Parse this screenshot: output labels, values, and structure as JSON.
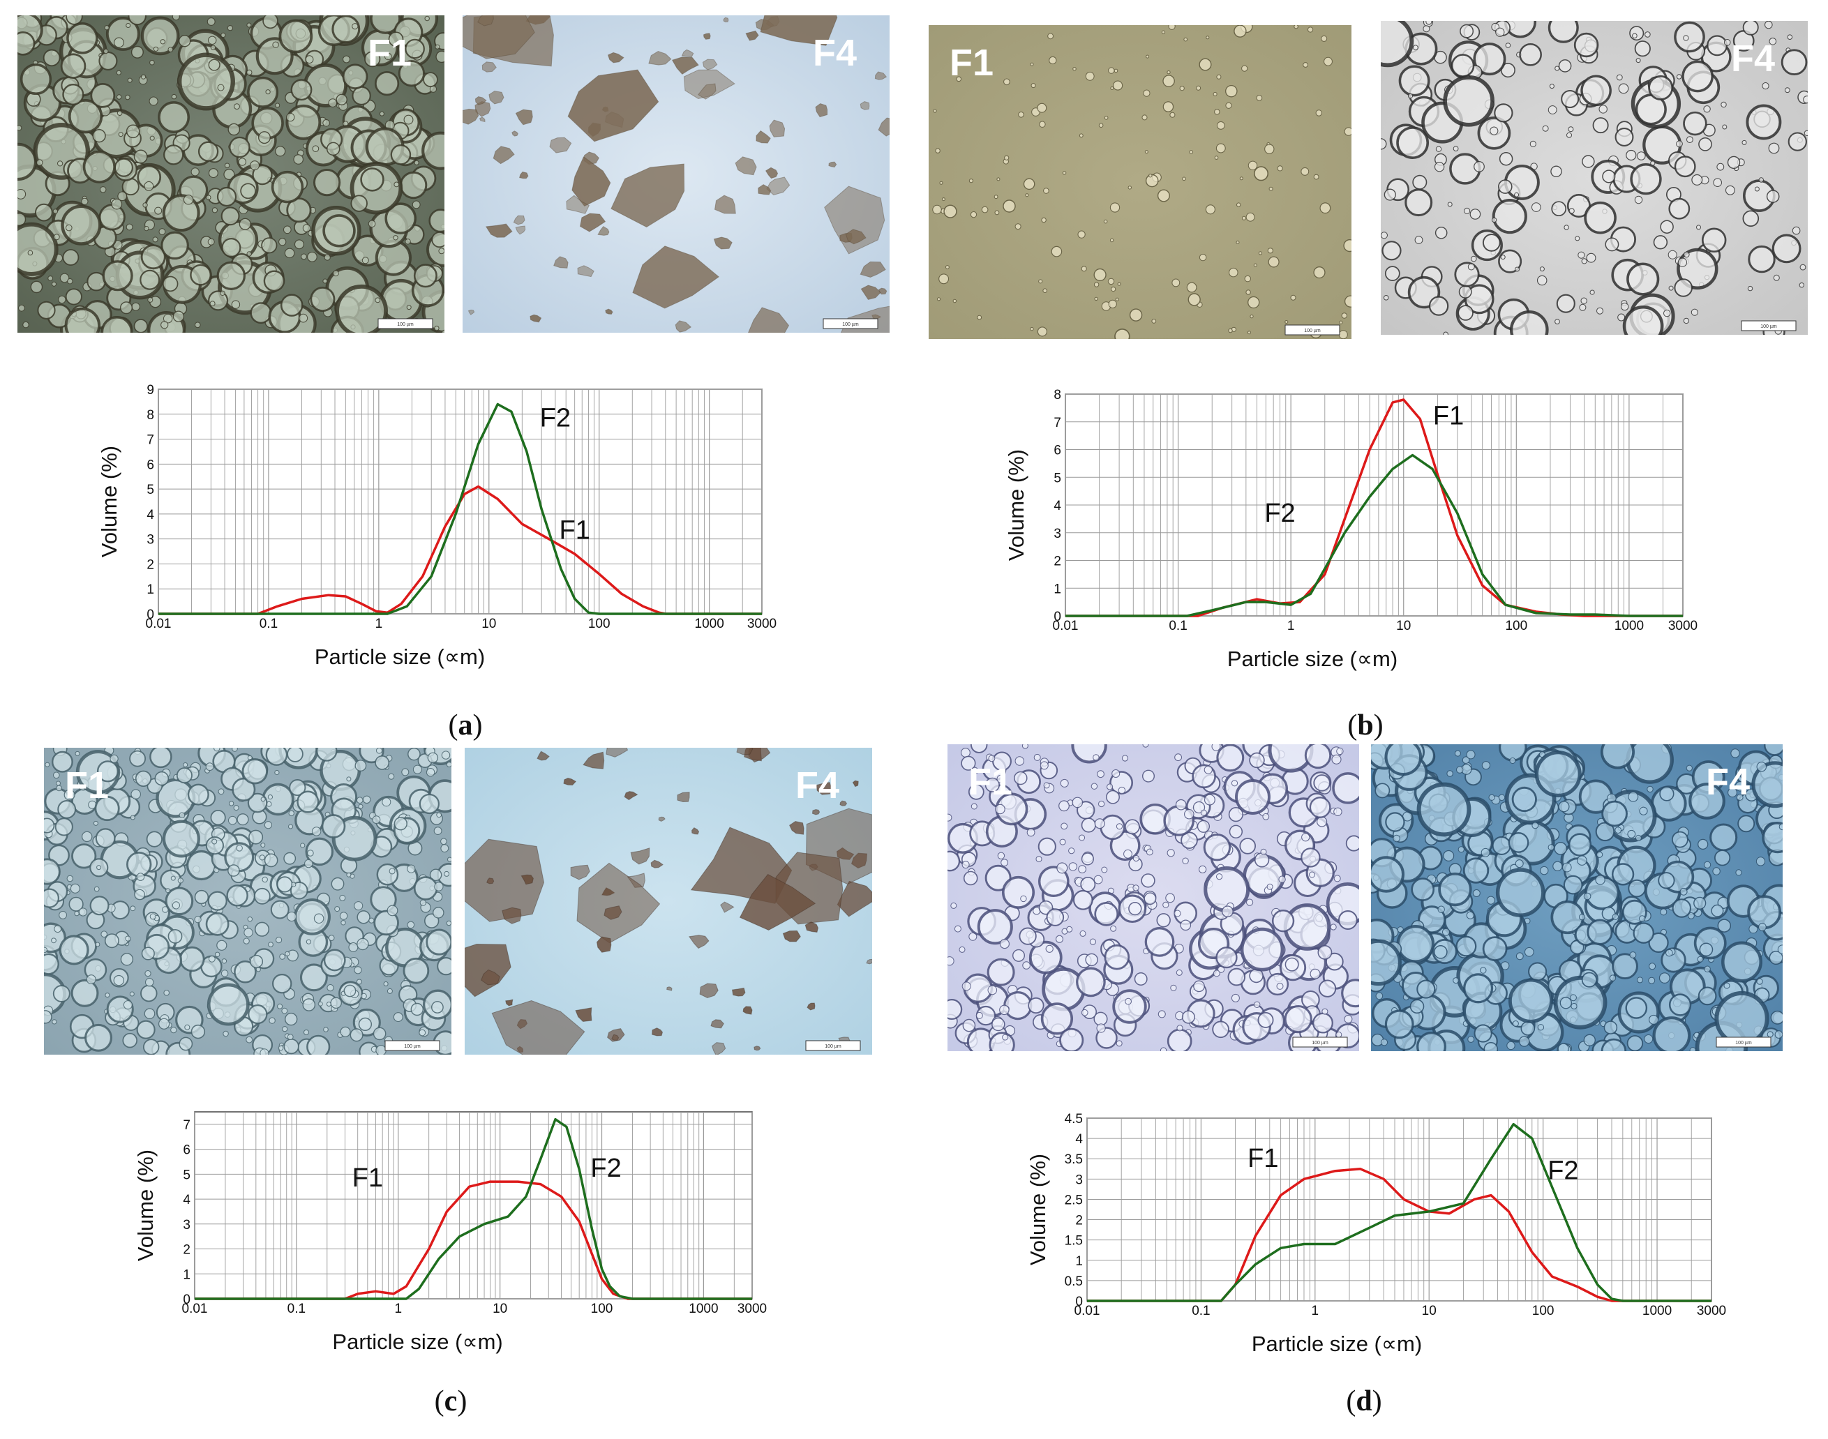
{
  "colors": {
    "F1": "#dd1a1a",
    "F2": "#1e6e1e",
    "grid": "#9a9a9a"
  },
  "panels": [
    {
      "id": "a",
      "caption_letter": "a",
      "photos": [
        {
          "label": "F1",
          "scale_text": "100 µm",
          "tone": "olive-teal-emulsion"
        },
        {
          "label": "F4",
          "scale_text": "100 µm",
          "tone": "pale-blue-aggregates"
        }
      ],
      "chart_data": {
        "type": "line",
        "xscale": "log",
        "xlim": [
          0.01,
          3000
        ],
        "ylim": [
          0,
          9
        ],
        "x_ticks": [
          "0.01",
          "0.1",
          "1",
          "10",
          "100",
          "1000",
          "3000"
        ],
        "y_ticks": [
          "0",
          "1",
          "2",
          "3",
          "4",
          "5",
          "6",
          "7",
          "8",
          "9"
        ],
        "xlabel": "Particle size (∝m)",
        "ylabel": "Volume (%)",
        "grid": true,
        "series": [
          {
            "name": "F1",
            "label_at": [
              60,
              3.0
            ],
            "points": [
              [
                0.01,
                0
              ],
              [
                0.08,
                0
              ],
              [
                0.12,
                0.3
              ],
              [
                0.2,
                0.6
              ],
              [
                0.35,
                0.75
              ],
              [
                0.5,
                0.7
              ],
              [
                0.7,
                0.4
              ],
              [
                0.95,
                0.1
              ],
              [
                1.2,
                0.05
              ],
              [
                1.6,
                0.4
              ],
              [
                2.5,
                1.5
              ],
              [
                4,
                3.5
              ],
              [
                6,
                4.8
              ],
              [
                8,
                5.1
              ],
              [
                12,
                4.6
              ],
              [
                20,
                3.6
              ],
              [
                35,
                3.0
              ],
              [
                60,
                2.4
              ],
              [
                100,
                1.6
              ],
              [
                160,
                0.8
              ],
              [
                250,
                0.3
              ],
              [
                350,
                0.05
              ],
              [
                400,
                0
              ],
              [
                3000,
                0
              ]
            ]
          },
          {
            "name": "F2",
            "label_at": [
              40,
              7.5
            ],
            "points": [
              [
                0.01,
                0
              ],
              [
                1.2,
                0
              ],
              [
                1.8,
                0.3
              ],
              [
                3,
                1.5
              ],
              [
                5,
                4
              ],
              [
                8,
                6.8
              ],
              [
                12,
                8.4
              ],
              [
                16,
                8.1
              ],
              [
                22,
                6.5
              ],
              [
                30,
                4.2
              ],
              [
                45,
                1.8
              ],
              [
                60,
                0.6
              ],
              [
                80,
                0.05
              ],
              [
                100,
                0
              ],
              [
                3000,
                0
              ]
            ]
          }
        ]
      }
    },
    {
      "id": "b",
      "caption_letter": "b",
      "photos": [
        {
          "label": "F1",
          "scale_text": "100 µm",
          "tone": "khaki-sparse"
        },
        {
          "label": "F4",
          "scale_text": "100 µm",
          "tone": "grey-droplets"
        }
      ],
      "chart_data": {
        "type": "line",
        "xscale": "log",
        "xlim": [
          0.01,
          3000
        ],
        "ylim": [
          0,
          8
        ],
        "x_ticks": [
          "0.01",
          "0.1",
          "1",
          "10",
          "100",
          "1000",
          "3000"
        ],
        "y_ticks": [
          "0",
          "1",
          "2",
          "3",
          "4",
          "5",
          "6",
          "7",
          "8"
        ],
        "xlabel": "Particle size (∝m)",
        "ylabel": "Volume (%)",
        "grid": true,
        "series": [
          {
            "name": "F1",
            "label_at": [
              25,
              6.9
            ],
            "points": [
              [
                0.01,
                0
              ],
              [
                0.15,
                0
              ],
              [
                0.25,
                0.3
              ],
              [
                0.5,
                0.6
              ],
              [
                0.8,
                0.45
              ],
              [
                1.2,
                0.5
              ],
              [
                2,
                1.5
              ],
              [
                3,
                3.5
              ],
              [
                5,
                6
              ],
              [
                8,
                7.7
              ],
              [
                10,
                7.8
              ],
              [
                14,
                7.1
              ],
              [
                20,
                5.1
              ],
              [
                30,
                2.9
              ],
              [
                50,
                1.1
              ],
              [
                80,
                0.4
              ],
              [
                150,
                0.15
              ],
              [
                250,
                0.05
              ],
              [
                400,
                0
              ],
              [
                3000,
                0
              ]
            ]
          },
          {
            "name": "F2",
            "label_at": [
              0.8,
              3.4
            ],
            "points": [
              [
                0.01,
                0
              ],
              [
                0.12,
                0
              ],
              [
                0.2,
                0.2
              ],
              [
                0.4,
                0.5
              ],
              [
                0.6,
                0.5
              ],
              [
                1,
                0.4
              ],
              [
                1.5,
                0.8
              ],
              [
                2,
                1.7
              ],
              [
                3,
                3.0
              ],
              [
                5,
                4.3
              ],
              [
                8,
                5.3
              ],
              [
                12,
                5.8
              ],
              [
                18,
                5.3
              ],
              [
                30,
                3.7
              ],
              [
                50,
                1.5
              ],
              [
                80,
                0.4
              ],
              [
                150,
                0.1
              ],
              [
                300,
                0.05
              ],
              [
                500,
                0.05
              ],
              [
                1000,
                0
              ],
              [
                3000,
                0
              ]
            ]
          }
        ]
      }
    },
    {
      "id": "c",
      "caption_letter": "c",
      "photos": [
        {
          "label": "F1",
          "scale_text": "100 µm",
          "tone": "blue-grey-emulsion"
        },
        {
          "label": "F4",
          "scale_text": "100 µm",
          "tone": "light-blue-aggregates"
        }
      ],
      "chart_data": {
        "type": "line",
        "xscale": "log",
        "xlim": [
          0.01,
          3000
        ],
        "ylim": [
          0,
          7.5
        ],
        "x_ticks": [
          "0.01",
          "0.1",
          "1",
          "10",
          "100",
          "1000",
          "3000"
        ],
        "y_ticks": [
          "0",
          "1",
          "2",
          "3",
          "4",
          "5",
          "6",
          "7"
        ],
        "xlabel": "Particle size (∝m)",
        "ylabel": "Volume (%)",
        "grid": true,
        "series": [
          {
            "name": "F1",
            "label_at": [
              0.5,
              4.5
            ],
            "points": [
              [
                0.01,
                0
              ],
              [
                0.3,
                0
              ],
              [
                0.4,
                0.2
              ],
              [
                0.6,
                0.3
              ],
              [
                0.9,
                0.2
              ],
              [
                1.2,
                0.5
              ],
              [
                2,
                2
              ],
              [
                3,
                3.5
              ],
              [
                5,
                4.5
              ],
              [
                8,
                4.7
              ],
              [
                15,
                4.7
              ],
              [
                25,
                4.6
              ],
              [
                40,
                4.1
              ],
              [
                60,
                3.1
              ],
              [
                80,
                1.8
              ],
              [
                100,
                0.8
              ],
              [
                130,
                0.2
              ],
              [
                180,
                0
              ],
              [
                3000,
                0
              ]
            ]
          },
          {
            "name": "F2",
            "label_at": [
              110,
              4.9
            ],
            "points": [
              [
                0.01,
                0
              ],
              [
                1.2,
                0
              ],
              [
                1.6,
                0.4
              ],
              [
                2.5,
                1.6
              ],
              [
                4,
                2.5
              ],
              [
                7,
                3
              ],
              [
                12,
                3.3
              ],
              [
                18,
                4.1
              ],
              [
                25,
                5.6
              ],
              [
                35,
                7.2
              ],
              [
                45,
                6.9
              ],
              [
                60,
                5.2
              ],
              [
                80,
                2.8
              ],
              [
                100,
                1.2
              ],
              [
                120,
                0.5
              ],
              [
                150,
                0.1
              ],
              [
                200,
                0
              ],
              [
                3000,
                0
              ]
            ]
          }
        ]
      }
    },
    {
      "id": "d",
      "caption_letter": "d",
      "photos": [
        {
          "label": "F1",
          "scale_text": "100 µm",
          "tone": "lavender-droplets"
        },
        {
          "label": "F4",
          "scale_text": "100 µm",
          "tone": "blue-droplets"
        }
      ],
      "chart_data": {
        "type": "line",
        "xscale": "log",
        "xlim": [
          0.01,
          3000
        ],
        "ylim": [
          0,
          4.5
        ],
        "x_ticks": [
          "0.01",
          "0.1",
          "1",
          "10",
          "100",
          "1000",
          "3000"
        ],
        "y_ticks": [
          "0",
          "0.5",
          "1",
          "1.5",
          "2",
          "2.5",
          "3",
          "3.5",
          "4",
          "4.5"
        ],
        "xlabel": "Particle size (∝m)",
        "ylabel": "Volume (%)",
        "grid": true,
        "series": [
          {
            "name": "F1",
            "label_at": [
              0.35,
              3.3
            ],
            "points": [
              [
                0.01,
                0
              ],
              [
                0.15,
                0
              ],
              [
                0.2,
                0.4
              ],
              [
                0.3,
                1.6
              ],
              [
                0.5,
                2.6
              ],
              [
                0.8,
                3.0
              ],
              [
                1.5,
                3.2
              ],
              [
                2.5,
                3.25
              ],
              [
                4,
                3.0
              ],
              [
                6,
                2.5
              ],
              [
                10,
                2.2
              ],
              [
                15,
                2.15
              ],
              [
                25,
                2.5
              ],
              [
                35,
                2.6
              ],
              [
                50,
                2.2
              ],
              [
                80,
                1.2
              ],
              [
                120,
                0.6
              ],
              [
                200,
                0.35
              ],
              [
                300,
                0.1
              ],
              [
                400,
                0
              ],
              [
                3000,
                0
              ]
            ]
          },
          {
            "name": "F2",
            "label_at": [
              150,
              3.0
            ],
            "points": [
              [
                0.01,
                0
              ],
              [
                0.15,
                0
              ],
              [
                0.2,
                0.4
              ],
              [
                0.3,
                0.9
              ],
              [
                0.5,
                1.3
              ],
              [
                0.8,
                1.4
              ],
              [
                1.5,
                1.4
              ],
              [
                3,
                1.8
              ],
              [
                5,
                2.1
              ],
              [
                10,
                2.2
              ],
              [
                20,
                2.4
              ],
              [
                35,
                3.5
              ],
              [
                55,
                4.35
              ],
              [
                80,
                4.0
              ],
              [
                120,
                2.8
              ],
              [
                200,
                1.3
              ],
              [
                300,
                0.4
              ],
              [
                400,
                0.05
              ],
              [
                500,
                0
              ],
              [
                3000,
                0
              ]
            ]
          }
        ]
      }
    }
  ]
}
